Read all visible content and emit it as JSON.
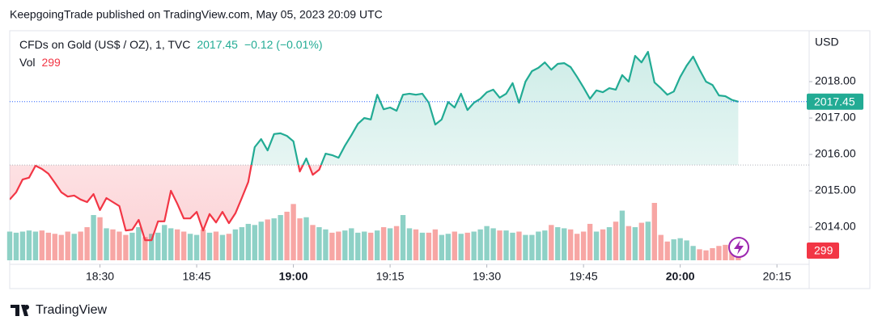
{
  "header": {
    "title": "KeepgoingTrade published on TradingView.com, May 05, 2023 20:09 UTC"
  },
  "chart_data": {
    "type": "baseline",
    "symbol": "CFDs on Gold (US$ / OZ), 1, TVC",
    "change": "−0.12 (−0.01%)",
    "currency": "USD",
    "x": [
      "18:16",
      "18:17",
      "18:18",
      "18:19",
      "18:20",
      "18:21",
      "18:22",
      "18:23",
      "18:24",
      "18:25",
      "18:26",
      "18:27",
      "18:28",
      "18:29",
      "18:30",
      "18:31",
      "18:32",
      "18:33",
      "18:34",
      "18:35",
      "18:36",
      "18:37",
      "18:38",
      "18:39",
      "18:40",
      "18:41",
      "18:42",
      "18:43",
      "18:44",
      "18:45",
      "18:46",
      "18:47",
      "18:48",
      "18:49",
      "18:50",
      "18:51",
      "18:52",
      "18:53",
      "18:54",
      "18:55",
      "18:56",
      "18:57",
      "18:58",
      "18:59",
      "19:00",
      "19:01",
      "19:02",
      "19:03",
      "19:04",
      "19:05",
      "19:06",
      "19:07",
      "19:08",
      "19:09",
      "19:10",
      "19:11",
      "19:12",
      "19:13",
      "19:14",
      "19:15",
      "19:16",
      "19:17",
      "19:18",
      "19:19",
      "19:20",
      "19:21",
      "19:22",
      "19:23",
      "19:24",
      "19:25",
      "19:26",
      "19:27",
      "19:28",
      "19:29",
      "19:30",
      "19:31",
      "19:32",
      "19:33",
      "19:34",
      "19:35",
      "19:36",
      "19:37",
      "19:38",
      "19:39",
      "19:40",
      "19:41",
      "19:42",
      "19:43",
      "19:44",
      "19:45",
      "19:46",
      "19:47",
      "19:48",
      "19:49",
      "19:50",
      "19:51",
      "19:52",
      "19:53",
      "19:54",
      "19:55",
      "19:56",
      "19:57",
      "19:58",
      "19:59",
      "20:00",
      "20:01",
      "20:02",
      "20:03",
      "20:04",
      "20:05",
      "20:06",
      "20:07",
      "20:08",
      "20:09"
    ],
    "series": [
      {
        "name": "CFDs on Gold (US$ / OZ), 1, TVC",
        "color": "#22ab94",
        "color_down": "#f23645",
        "baseline": 2015.71,
        "values": [
          2014.76,
          2014.96,
          2015.31,
          2015.36,
          2015.69,
          2015.6,
          2015.47,
          2015.22,
          2014.96,
          2014.84,
          2014.87,
          2014.76,
          2014.69,
          2014.91,
          2014.47,
          2014.8,
          2014.69,
          2014.58,
          2013.91,
          2013.93,
          2014.2,
          2013.64,
          2013.64,
          2014.16,
          2014.16,
          2015.0,
          2014.64,
          2014.24,
          2014.24,
          2014.42,
          2013.91,
          2014.36,
          2014.13,
          2014.42,
          2014.11,
          2014.38,
          2014.8,
          2015.24,
          2016.2,
          2016.42,
          2016.11,
          2016.56,
          2016.58,
          2016.51,
          2016.36,
          2015.53,
          2015.89,
          2015.44,
          2015.58,
          2016.02,
          2015.98,
          2015.91,
          2016.24,
          2016.53,
          2016.84,
          2017.0,
          2016.96,
          2017.64,
          2017.24,
          2017.29,
          2017.2,
          2017.64,
          2017.67,
          2017.64,
          2017.67,
          2017.42,
          2016.82,
          2016.96,
          2017.44,
          2017.29,
          2017.67,
          2017.22,
          2017.42,
          2017.53,
          2017.71,
          2017.78,
          2017.56,
          2017.67,
          2017.96,
          2017.42,
          2018.0,
          2018.29,
          2018.38,
          2018.53,
          2018.33,
          2018.49,
          2018.51,
          2018.4,
          2018.13,
          2017.84,
          2017.53,
          2017.76,
          2017.71,
          2017.82,
          2017.78,
          2018.18,
          2018.0,
          2018.71,
          2018.53,
          2018.82,
          2017.98,
          2017.82,
          2017.64,
          2017.73,
          2018.13,
          2018.44,
          2018.69,
          2018.33,
          2018.0,
          2017.91,
          2017.62,
          2017.6,
          2017.5,
          2017.45
        ]
      },
      {
        "name": "Vol",
        "axis": "volume",
        "color": "#8ed1c6",
        "color_down": "#f7a6a4",
        "label_color": "#f23645",
        "values": [
          1300,
          1250,
          1300,
          1350,
          1300,
          1350,
          1250,
          1200,
          1150,
          1300,
          1200,
          1300,
          1500,
          2050,
          1950,
          1450,
          1400,
          1300,
          1150,
          1250,
          1500,
          1050,
          1200,
          1250,
          1600,
          1450,
          1400,
          1300,
          1200,
          1150,
          1400,
          1250,
          1300,
          1150,
          1200,
          1400,
          1500,
          1650,
          1600,
          1750,
          1850,
          1900,
          2050,
          2200,
          2550,
          1900,
          1950,
          1600,
          1500,
          1400,
          1250,
          1300,
          1350,
          1450,
          1250,
          1300,
          1250,
          1350,
          1500,
          1450,
          1550,
          2050,
          1450,
          1400,
          1250,
          1250,
          1400,
          1150,
          1200,
          1300,
          1200,
          1250,
          1300,
          1400,
          1550,
          1450,
          1350,
          1350,
          1250,
          1300,
          1150,
          1150,
          1300,
          1350,
          1600,
          1500,
          1450,
          1400,
          1200,
          1300,
          1650,
          1300,
          1400,
          1500,
          1750,
          2250,
          1550,
          1500,
          1700,
          1750,
          2600,
          1150,
          850,
          950,
          1000,
          900,
          650,
          500,
          450,
          550,
          650,
          700,
          500,
          299
        ]
      }
    ],
    "xlim": [
      "18:16",
      "20:20"
    ],
    "xticks": [
      "18:30",
      "18:45",
      "19:00",
      "19:15",
      "19:30",
      "19:45",
      "20:00",
      "20:15"
    ],
    "ylim": [
      2013.09,
      2019.4
    ],
    "yticks": [
      {
        "value": 2018,
        "label": "2018.00"
      },
      {
        "value": 2017,
        "label": "2017.00"
      },
      {
        "value": 2016,
        "label": "2016.00"
      },
      {
        "value": 2015,
        "label": "2015.00"
      },
      {
        "value": 2014,
        "label": "2014.00"
      }
    ],
    "volume_ylim": [
      0,
      10400
    ]
  },
  "footer": {
    "brand": "TradingView"
  }
}
